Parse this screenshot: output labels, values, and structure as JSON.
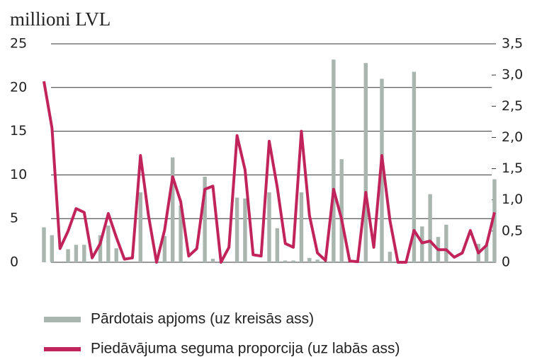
{
  "chart_data": {
    "type": "bar-line",
    "y_label": "millioni LVL",
    "categories": [
      null,
      null,
      null,
      null,
      null,
      null,
      null,
      null,
      null,
      null,
      null,
      null,
      null,
      null,
      null,
      null,
      null,
      null,
      null,
      null,
      null,
      null,
      null,
      null,
      null,
      null,
      null,
      null,
      null,
      null,
      null,
      null,
      null,
      null,
      null,
      null,
      null,
      null,
      null,
      null,
      null,
      null,
      null,
      null,
      null,
      null,
      null,
      null,
      null,
      null,
      null,
      null,
      null,
      null,
      null,
      null,
      null
    ],
    "series": [
      {
        "name": "Pārdotais apjoms (uz kreisās ass)",
        "type": "bar",
        "color": "#a9b6af",
        "values": [
          4.0,
          3.1,
          0,
          1.5,
          2.0,
          2.0,
          0,
          3.1,
          4.2,
          1.6,
          0,
          0,
          8.0,
          0,
          0,
          3.0,
          12.0,
          6.5,
          0,
          0,
          9.8,
          0.4,
          0,
          0,
          7.4,
          7.3,
          0,
          0,
          8.0,
          3.9,
          0.2,
          0.2,
          8.0,
          0.5,
          0.3,
          0,
          23.2,
          11.8,
          0,
          0,
          22.8,
          0,
          21.0,
          1.2,
          0,
          0,
          21.8,
          4.1,
          7.8,
          2.9,
          4.3,
          0,
          0,
          0,
          2.1,
          2.0,
          9.5
        ]
      },
      {
        "name": "Piedāvājuma seguma proporcija (uz labās ass)",
        "type": "line",
        "axis": "y2",
        "color": "#c0245a",
        "values": [
          2.9,
          2.15,
          0.22,
          0.5,
          0.86,
          0.8,
          0.07,
          0.3,
          0.78,
          0.4,
          0.05,
          0.07,
          1.71,
          0.75,
          0,
          0.52,
          1.37,
          0.97,
          0.1,
          0.22,
          1.17,
          1.22,
          0,
          0.24,
          2.03,
          1.48,
          0.12,
          0.1,
          1.94,
          1.2,
          0.3,
          0.24,
          2.1,
          0.75,
          0.15,
          0.03,
          1.17,
          0.69,
          0.02,
          0.01,
          1.12,
          0.24,
          1.71,
          0.67,
          0,
          0,
          0.51,
          0.31,
          0.34,
          0.2,
          0.2,
          0.08,
          0.15,
          0.51,
          0.15,
          0.27,
          0.8
        ]
      }
    ],
    "ylim": [
      0,
      25
    ],
    "yticks": [
      0,
      5,
      10,
      15,
      20,
      25
    ],
    "y2lim": [
      0,
      3.5
    ],
    "y2ticks": [
      0,
      {
        "value": 0.5,
        "label": "0,5"
      },
      {
        "value": 1,
        "label": "1,0"
      },
      {
        "value": 1.5,
        "label": "1,5"
      },
      {
        "value": 2,
        "label": "2,0"
      },
      {
        "value": 2.5,
        "label": "2,5"
      },
      {
        "value": 3,
        "label": "3,0"
      },
      {
        "value": 3.5,
        "label": "3,5"
      }
    ],
    "grid": true
  }
}
